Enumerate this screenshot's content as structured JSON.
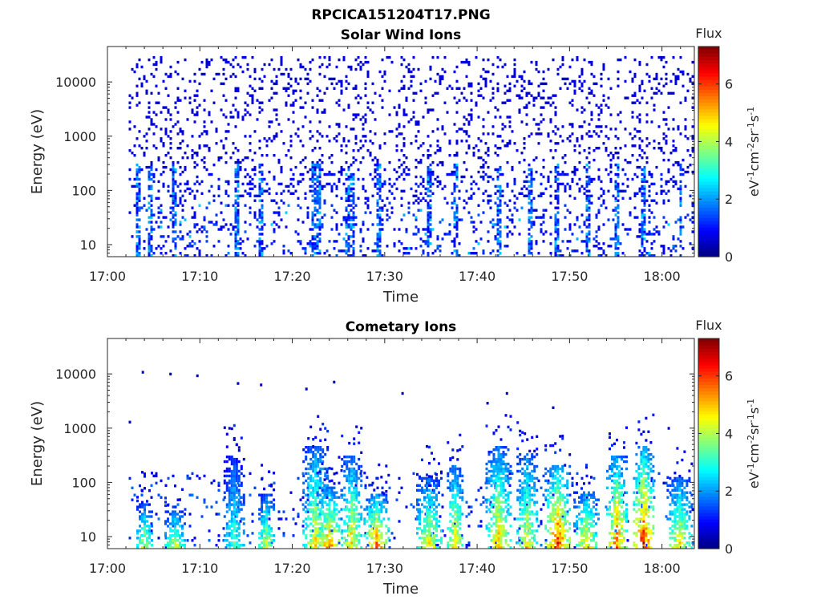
{
  "figure": {
    "filename": "RPCICA151204T17.PNG"
  },
  "colormap": {
    "name": "jet",
    "stops": [
      "#00008f",
      "#0000ff",
      "#00ffff",
      "#ffff00",
      "#ff0000",
      "#800000"
    ]
  },
  "chart_data": [
    {
      "type": "heatmap",
      "title": "Solar Wind Ions",
      "xlabel": "Time",
      "ylabel": "Energy (eV)",
      "x_ticks": [
        "17:00",
        "17:10",
        "17:20",
        "17:30",
        "17:40",
        "17:50",
        "18:00"
      ],
      "x_tick_minutes": [
        0,
        10,
        20,
        30,
        40,
        50,
        60
      ],
      "xlim_minutes": [
        0,
        63.5
      ],
      "y_ticks": [
        "10",
        "100",
        "1000",
        "10000"
      ],
      "y_tick_values": [
        10,
        100,
        1000,
        10000
      ],
      "ylim": [
        6,
        45000
      ],
      "yscale": "log",
      "data_start_minute": 2.3,
      "colorbar": {
        "title": "Flux",
        "label": "eV-1cm-2sr-1s-1",
        "ticks": [
          "0",
          "2",
          "4",
          "6"
        ],
        "tick_values": [
          0,
          2,
          4,
          6
        ],
        "range": [
          0,
          7.3
        ]
      },
      "distribution": {
        "sparse_high_energy_range_eV": [
          200,
          30000
        ],
        "sparse_high_energy_flux": 0.5,
        "dense_low_energy_range_eV": [
          6,
          300
        ],
        "low_energy_flux_range": [
          0.5,
          2.5
        ],
        "columns_with_enhanced_flux_minutes": [
          3.2,
          4.5,
          7.1,
          13.9,
          16.5,
          22.3,
          22.7,
          25.8,
          26.4,
          29.2,
          34.8,
          37.6,
          42.3,
          45.6,
          48.4,
          51.8,
          55.1,
          57.8,
          61.9
        ]
      }
    },
    {
      "type": "heatmap",
      "title": "Cometary Ions",
      "xlabel": "Time",
      "ylabel": "Energy (eV)",
      "x_ticks": [
        "17:00",
        "17:10",
        "17:20",
        "17:30",
        "17:40",
        "17:50",
        "18:00"
      ],
      "x_tick_minutes": [
        0,
        10,
        20,
        30,
        40,
        50,
        60
      ],
      "xlim_minutes": [
        0,
        63.5
      ],
      "y_ticks": [
        "10",
        "100",
        "1000",
        "10000"
      ],
      "y_tick_values": [
        10,
        100,
        1000,
        10000
      ],
      "ylim": [
        6,
        45000
      ],
      "yscale": "log",
      "data_start_minute": 2.3,
      "colorbar": {
        "title": "Flux",
        "label": "eV-1cm-2sr-1s-1",
        "ticks": [
          "0",
          "2",
          "4",
          "6"
        ],
        "tick_values": [
          0,
          2,
          4,
          6
        ],
        "range": [
          0,
          7.3
        ]
      },
      "distribution": {
        "sparse_high_energy_points": [
          {
            "minute": 2.3,
            "eV": 1300
          },
          {
            "minute": 3.7,
            "eV": 10800
          },
          {
            "minute": 6.7,
            "eV": 10000
          },
          {
            "minute": 9.6,
            "eV": 9300
          },
          {
            "minute": 14.0,
            "eV": 6700
          },
          {
            "minute": 16.5,
            "eV": 6300
          },
          {
            "minute": 21.4,
            "eV": 5300
          },
          {
            "minute": 24.4,
            "eV": 7100
          },
          {
            "minute": 31.8,
            "eV": 4400
          },
          {
            "minute": 41.0,
            "eV": 2900
          },
          {
            "minute": 43.1,
            "eV": 4400
          },
          {
            "minute": 48.1,
            "eV": 2400
          },
          {
            "minute": 60.6,
            "eV": 1000
          }
        ],
        "bursts": [
          {
            "minute": 3.9,
            "peak_flux": 4.5,
            "top_eV": 40
          },
          {
            "minute": 7.2,
            "peak_flux": 4.7,
            "top_eV": 30
          },
          {
            "minute": 13.6,
            "peak_flux": 3.5,
            "top_eV": 300
          },
          {
            "minute": 17.1,
            "peak_flux": 4.6,
            "top_eV": 60
          },
          {
            "minute": 22.4,
            "peak_flux": 5.0,
            "top_eV": 450
          },
          {
            "minute": 23.9,
            "peak_flux": 5.8,
            "top_eV": 80
          },
          {
            "minute": 26.3,
            "peak_flux": 5.1,
            "top_eV": 300
          },
          {
            "minute": 29.0,
            "peak_flux": 6.0,
            "top_eV": 60
          },
          {
            "minute": 34.7,
            "peak_flux": 4.9,
            "top_eV": 120
          },
          {
            "minute": 37.5,
            "peak_flux": 5.2,
            "top_eV": 200
          },
          {
            "minute": 42.2,
            "peak_flux": 5.3,
            "top_eV": 450
          },
          {
            "minute": 45.3,
            "peak_flux": 5.0,
            "top_eV": 350
          },
          {
            "minute": 48.6,
            "peak_flux": 6.5,
            "top_eV": 200
          },
          {
            "minute": 51.7,
            "peak_flux": 5.2,
            "top_eV": 70
          },
          {
            "minute": 55.0,
            "peak_flux": 6.0,
            "top_eV": 300
          },
          {
            "minute": 57.9,
            "peak_flux": 6.7,
            "top_eV": 450
          },
          {
            "minute": 61.8,
            "peak_flux": 5.0,
            "top_eV": 120
          }
        ]
      }
    }
  ]
}
